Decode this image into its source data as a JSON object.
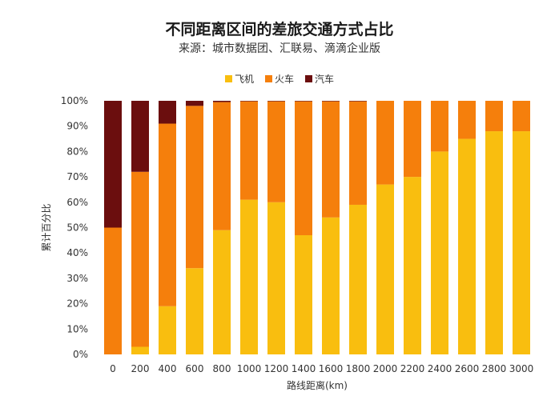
{
  "header": {
    "title": "不同距离区间的差旅交通方式占比",
    "subtitle": "来源：城市数据团、汇联易、滴滴企业版"
  },
  "chart_data": {
    "type": "bar",
    "stacked": true,
    "categories": [
      "0",
      "200",
      "400",
      "600",
      "800",
      "1000",
      "1200",
      "1400",
      "1600",
      "1800",
      "2000",
      "2200",
      "2400",
      "2600",
      "2800",
      "3000"
    ],
    "series": [
      {
        "name": "飞机",
        "color": "#F9BE0F",
        "values": [
          0,
          3,
          19,
          34,
          49,
          61,
          60,
          47,
          54,
          59,
          67,
          70,
          80,
          85,
          88,
          88
        ]
      },
      {
        "name": "火车",
        "color": "#F57F0C",
        "values": [
          50,
          69,
          72,
          64,
          50.5,
          38.8,
          39.8,
          52.8,
          45.8,
          40.8,
          33,
          30,
          20,
          15,
          12,
          12
        ]
      },
      {
        "name": "汽车",
        "color": "#6B0E0E",
        "values": [
          50,
          28,
          9,
          2,
          0.5,
          0.2,
          0.2,
          0.2,
          0.2,
          0.2,
          0,
          0,
          0,
          0,
          0,
          0
        ]
      }
    ],
    "xlabel": "路线距离(km)",
    "ylabel": "累计百分比",
    "ylim": [
      0,
      100
    ],
    "yticks": [
      "0%",
      "10%",
      "20%",
      "30%",
      "40%",
      "50%",
      "60%",
      "70%",
      "80%",
      "90%",
      "100%"
    ],
    "legend_position": "top-center",
    "grid": false
  }
}
